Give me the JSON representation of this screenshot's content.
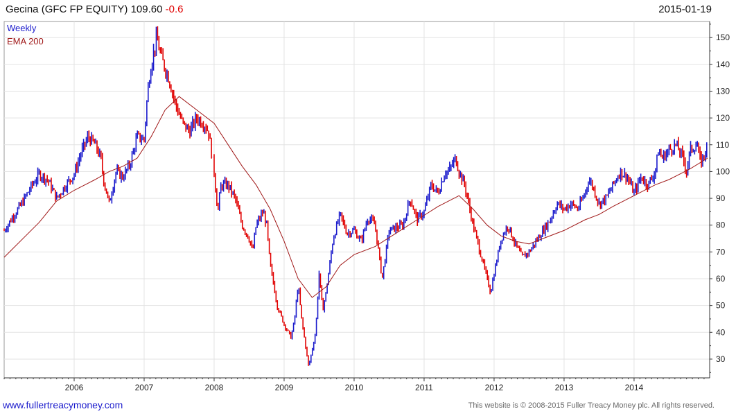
{
  "header": {
    "title": "Gecina (GFC FP EQUITY)",
    "last_price": "109.60",
    "change": "-0.6",
    "date": "2015-01-19"
  },
  "footer": {
    "left": "www.fullertreacymoney.com",
    "right": "This website is © 2008-2015 Fuller Treacy Money plc. All rights reserved."
  },
  "colors": {
    "up": "#1a1acc",
    "down": "#e00000",
    "ema": "#a01818",
    "grid": "#e3e3e3",
    "axis": "#333333"
  },
  "chart_data": {
    "type": "line",
    "chart_style": "weekly bar chart (ohlc) with moving average overlay",
    "legend": [
      "Weekly",
      "EMA 200"
    ],
    "legend_position": "top-left",
    "grid": true,
    "x_ticks": [
      "2006",
      "2007",
      "2008",
      "2009",
      "2010",
      "2011",
      "2012",
      "2013",
      "2014"
    ],
    "y_ticks": [
      30,
      40,
      50,
      60,
      70,
      80,
      90,
      100,
      110,
      120,
      130,
      140,
      150
    ],
    "ylim": [
      23,
      156
    ],
    "xlim": [
      2005.0,
      2015.08
    ],
    "y_axis_side": "right",
    "series": [
      {
        "name": "Weekly",
        "x": [
          2005.0,
          2005.12,
          2005.25,
          2005.4,
          2005.5,
          2005.62,
          2005.75,
          2005.88,
          2006.0,
          2006.1,
          2006.2,
          2006.3,
          2006.38,
          2006.42,
          2006.5,
          2006.6,
          2006.7,
          2006.8,
          2006.9,
          2007.0,
          2007.05,
          2007.1,
          2007.18,
          2007.25,
          2007.35,
          2007.45,
          2007.55,
          2007.65,
          2007.75,
          2007.85,
          2007.92,
          2008.0,
          2008.05,
          2008.1,
          2008.2,
          2008.3,
          2008.4,
          2008.5,
          2008.55,
          2008.6,
          2008.7,
          2008.75,
          2008.8,
          2008.85,
          2008.9,
          2009.0,
          2009.1,
          2009.15,
          2009.2,
          2009.25,
          2009.35,
          2009.45,
          2009.5,
          2009.55,
          2009.6,
          2009.7,
          2009.8,
          2009.9,
          2010.0,
          2010.1,
          2010.2,
          2010.3,
          2010.35,
          2010.4,
          2010.5,
          2010.6,
          2010.7,
          2010.8,
          2010.9,
          2011.0,
          2011.1,
          2011.2,
          2011.3,
          2011.35,
          2011.45,
          2011.5,
          2011.58,
          2011.62,
          2011.7,
          2011.75,
          2011.85,
          2011.95,
          2012.0,
          2012.1,
          2012.2,
          2012.3,
          2012.4,
          2012.5,
          2012.6,
          2012.7,
          2012.8,
          2012.9,
          2013.0,
          2013.1,
          2013.2,
          2013.3,
          2013.35,
          2013.4,
          2013.5,
          2013.6,
          2013.7,
          2013.8,
          2013.9,
          2014.0,
          2014.1,
          2014.2,
          2014.3,
          2014.35,
          2014.4,
          2014.5,
          2014.6,
          2014.7,
          2014.75,
          2014.8,
          2014.9,
          2014.95,
          2015.05
        ],
        "values": [
          78,
          83,
          88,
          95,
          99,
          97,
          90,
          95,
          99,
          107,
          113,
          110,
          105,
          97,
          88,
          100,
          98,
          103,
          113,
          112,
          130,
          140,
          150,
          142,
          135,
          125,
          118,
          115,
          120,
          118,
          115,
          100,
          85,
          95,
          95,
          90,
          80,
          75,
          70,
          80,
          85,
          80,
          65,
          58,
          50,
          43,
          38,
          45,
          58,
          45,
          27,
          40,
          62,
          48,
          55,
          75,
          84,
          77,
          78,
          74,
          83,
          80,
          70,
          60,
          78,
          79,
          80,
          90,
          82,
          85,
          95,
          92,
          100,
          100,
          105,
          100,
          95,
          90,
          80,
          75,
          65,
          55,
          62,
          75,
          80,
          73,
          68,
          70,
          74,
          78,
          82,
          88,
          86,
          88,
          86,
          92,
          97,
          95,
          88,
          90,
          95,
          100,
          98,
          92,
          98,
          95,
          100,
          108,
          105,
          108,
          110,
          105,
          100,
          108,
          110,
          103,
          109.6
        ]
      },
      {
        "name": "EMA 200",
        "x": [
          2005.0,
          2005.5,
          2005.75,
          2006.0,
          2006.3,
          2006.5,
          2006.7,
          2006.9,
          2007.1,
          2007.3,
          2007.5,
          2007.8,
          2008.0,
          2008.2,
          2008.4,
          2008.6,
          2008.8,
          2009.0,
          2009.2,
          2009.4,
          2009.6,
          2009.8,
          2010.0,
          2010.3,
          2010.6,
          2010.9,
          2011.2,
          2011.5,
          2011.7,
          2011.9,
          2012.1,
          2012.3,
          2012.5,
          2012.7,
          2013.0,
          2013.3,
          2013.5,
          2013.7,
          2014.0,
          2014.3,
          2014.5,
          2014.8,
          2015.05
        ],
        "values": [
          68,
          81,
          89,
          93,
          97,
          100,
          102,
          105,
          113,
          123,
          128,
          122,
          118,
          110,
          102,
          95,
          86,
          74,
          60,
          53,
          57,
          65,
          69,
          72,
          77,
          82,
          87,
          91,
          86,
          80,
          76,
          74,
          73,
          75,
          78,
          82,
          84,
          87,
          91,
          95,
          97,
          101,
          105
        ]
      }
    ]
  }
}
